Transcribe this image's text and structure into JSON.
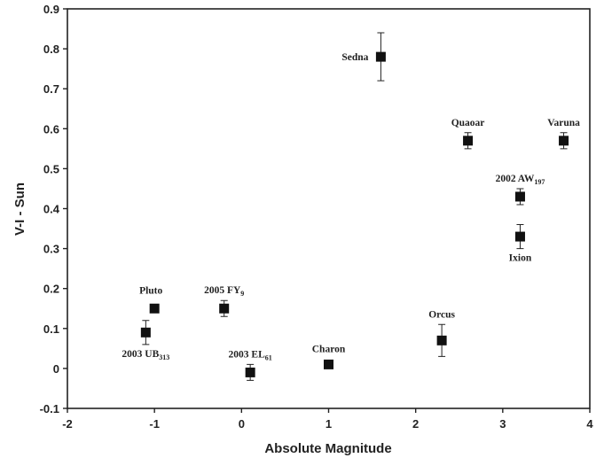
{
  "chart_data": {
    "type": "scatter",
    "title": "",
    "xlabel": "Absolute Magnitude",
    "ylabel": "V-I - Sun",
    "xlim": [
      -2,
      4
    ],
    "ylim": [
      -0.1,
      0.9
    ],
    "xticks": [
      "-2",
      "-1",
      "0",
      "1",
      "2",
      "3",
      "4"
    ],
    "yticks": [
      "-0.1",
      "0",
      "0.1",
      "0.2",
      "0.3",
      "0.4",
      "0.5",
      "0.6",
      "0.7",
      "0.8",
      "0.9"
    ],
    "grid": false,
    "points": [
      {
        "name": "Pluto",
        "sub": "",
        "x": -1.0,
        "y": 0.15,
        "err": null,
        "label_pos": "above-left"
      },
      {
        "name": "2003 UB",
        "sub": "313",
        "x": -1.1,
        "y": 0.09,
        "err": 0.03,
        "label_pos": "below"
      },
      {
        "name": "2005 FY",
        "sub": "9",
        "x": -0.2,
        "y": 0.15,
        "err": 0.02,
        "label_pos": "above"
      },
      {
        "name": "2003 EL",
        "sub": "61",
        "x": 0.1,
        "y": -0.01,
        "err": 0.02,
        "label_pos": "above"
      },
      {
        "name": "Charon",
        "sub": "",
        "x": 1.0,
        "y": 0.01,
        "err": null,
        "label_pos": "above"
      },
      {
        "name": "Sedna",
        "sub": "",
        "x": 1.6,
        "y": 0.78,
        "err": 0.06,
        "label_pos": "left"
      },
      {
        "name": "Orcus",
        "sub": "",
        "x": 2.3,
        "y": 0.07,
        "err": 0.04,
        "label_pos": "above"
      },
      {
        "name": "Quaoar",
        "sub": "",
        "x": 2.6,
        "y": 0.57,
        "err": 0.02,
        "label_pos": "above"
      },
      {
        "name": "2002 AW",
        "sub": "197",
        "x": 3.2,
        "y": 0.43,
        "err": 0.02,
        "label_pos": "above"
      },
      {
        "name": "Ixion",
        "sub": "",
        "x": 3.2,
        "y": 0.33,
        "err": 0.03,
        "label_pos": "below"
      },
      {
        "name": "Varuna",
        "sub": "",
        "x": 3.7,
        "y": 0.57,
        "err": 0.02,
        "label_pos": "above"
      }
    ]
  }
}
